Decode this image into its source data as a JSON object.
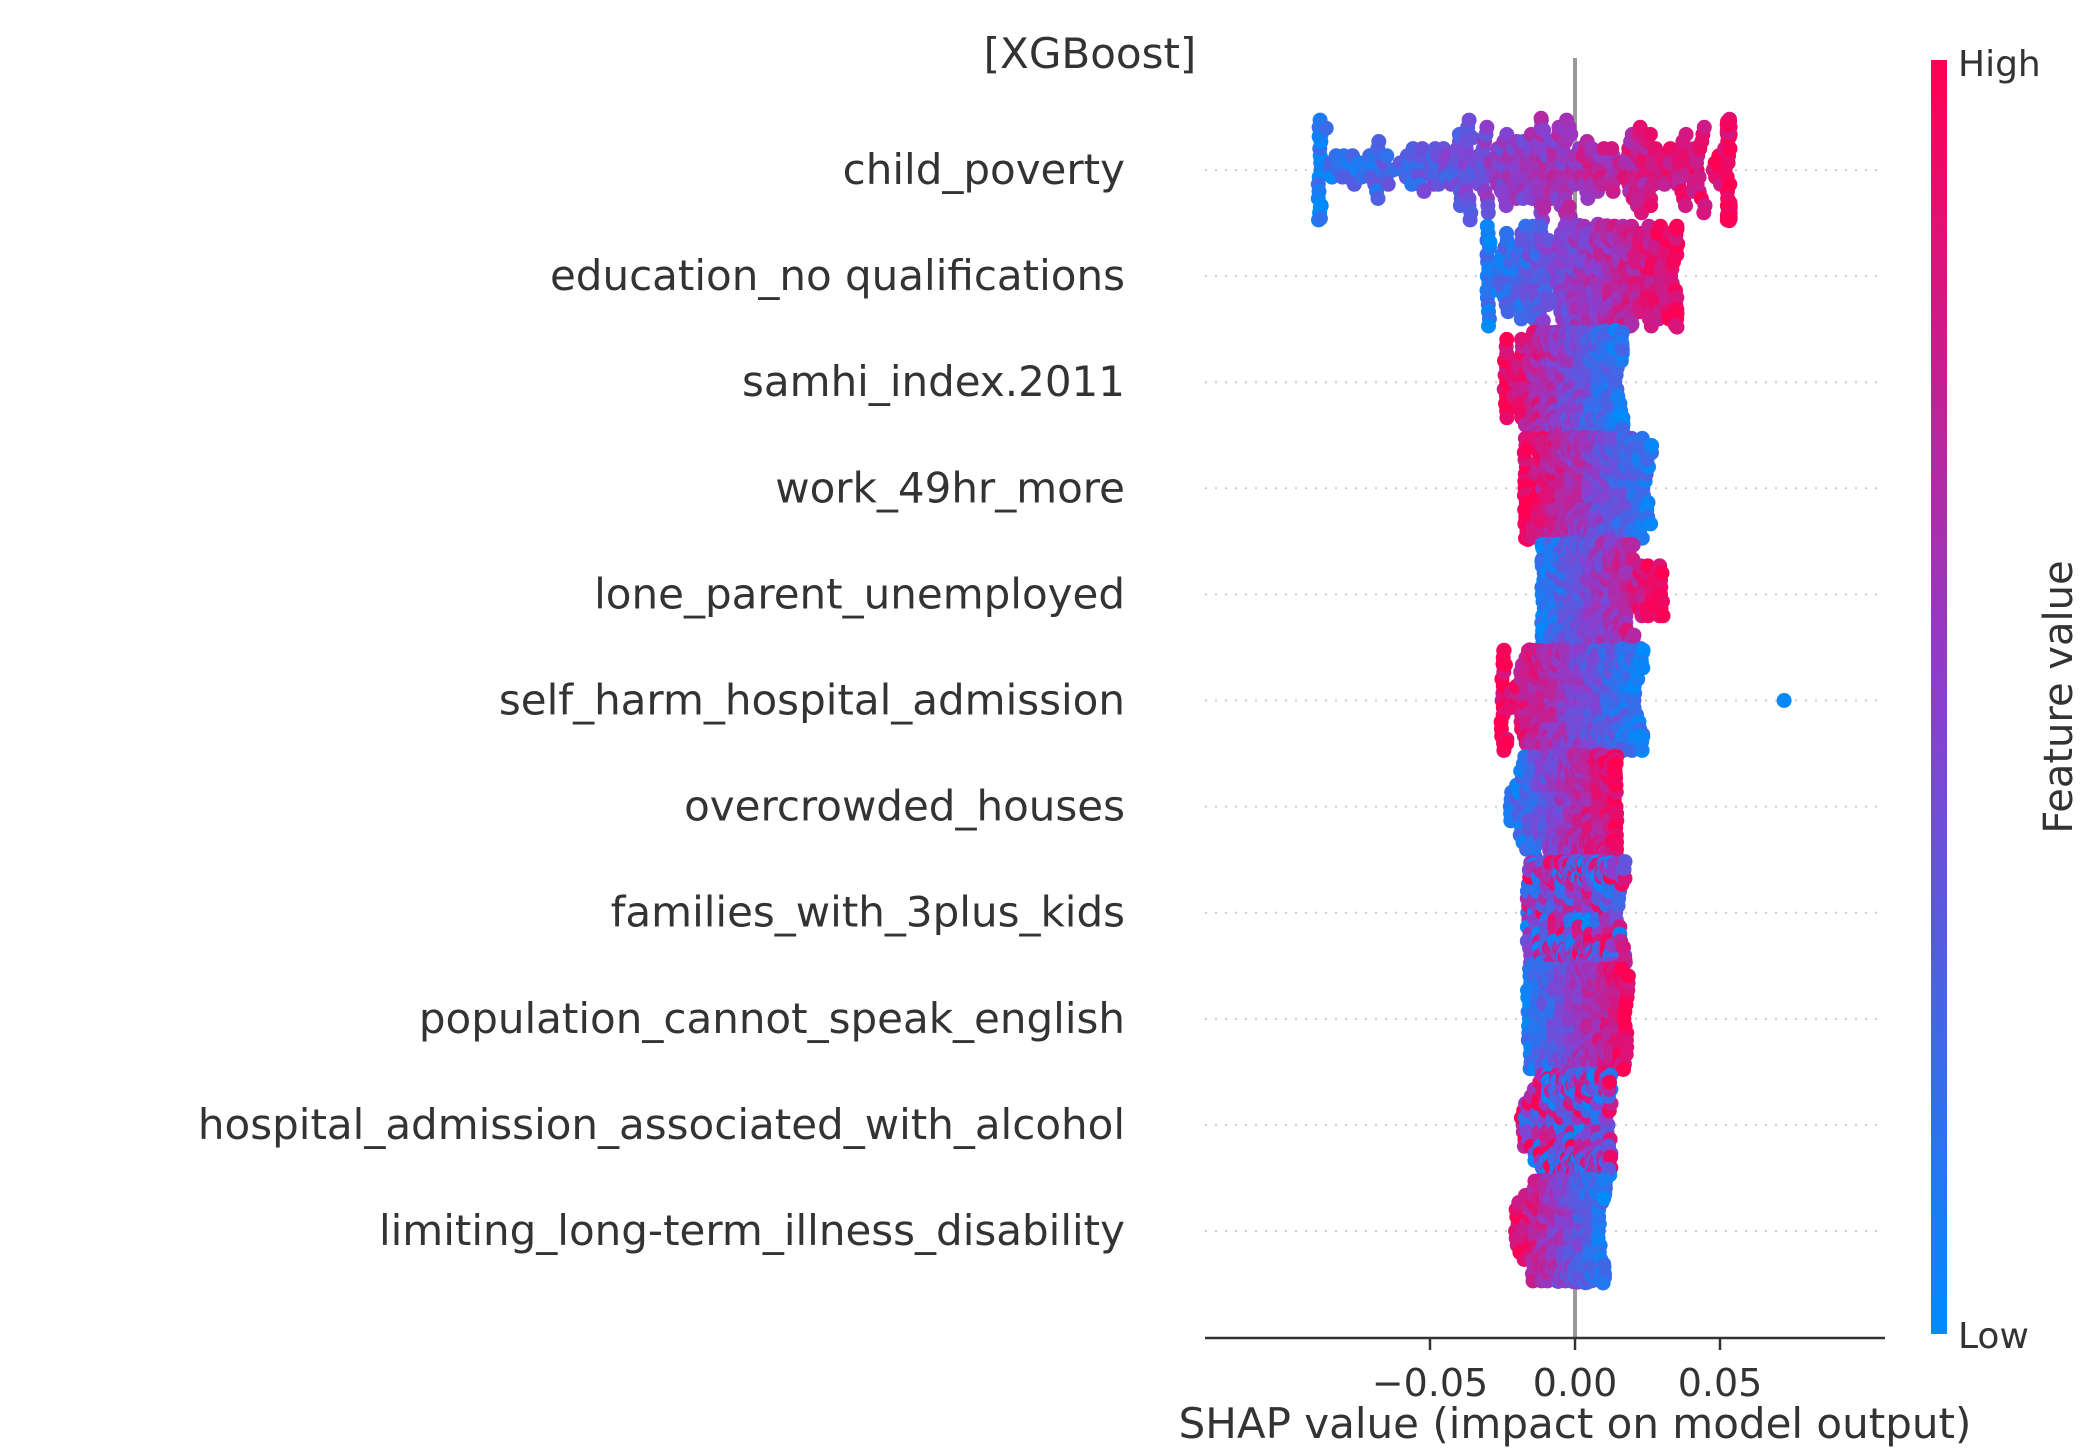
{
  "chart_data": {
    "type": "scatter",
    "subtype": "shap-beeswarm",
    "title": "[XGBoost]",
    "xlabel": "SHAP value (impact on model output)",
    "xlim": [
      -0.095,
      0.08
    ],
    "xticks": [
      -0.05,
      0.0,
      0.05
    ],
    "xtick_labels": [
      "−0.05",
      "0.00",
      "0.05"
    ],
    "features": [
      {
        "name": "child_poverty",
        "min": -0.088,
        "max": 0.053,
        "q1": -0.03,
        "q3": 0.032,
        "corr": 1,
        "n": 420,
        "outliers": []
      },
      {
        "name": "education_no qualifications",
        "min": -0.03,
        "max": 0.035,
        "q1": -0.013,
        "q3": 0.018,
        "corr": 1,
        "n": 360,
        "outliers": []
      },
      {
        "name": "samhi_index.2011",
        "min": -0.024,
        "max": 0.016,
        "q1": -0.008,
        "q3": 0.007,
        "corr": -1,
        "n": 360,
        "outliers": []
      },
      {
        "name": "work_49hr_more",
        "min": -0.017,
        "max": 0.026,
        "q1": -0.006,
        "q3": 0.009,
        "corr": -1,
        "n": 360,
        "outliers": []
      },
      {
        "name": "lone_parent_unemployed",
        "min": -0.011,
        "max": 0.03,
        "q1": -0.004,
        "q3": 0.011,
        "corr": 1,
        "n": 360,
        "outliers": []
      },
      {
        "name": "self_harm_hospital_admission",
        "min": -0.025,
        "max": 0.023,
        "q1": -0.009,
        "q3": 0.01,
        "corr": -1,
        "n": 360,
        "outliers": [
          0.072
        ]
      },
      {
        "name": "overcrowded_houses",
        "min": -0.022,
        "max": 0.014,
        "q1": -0.006,
        "q3": 0.006,
        "corr": 1,
        "n": 360,
        "outliers": []
      },
      {
        "name": "families_with_3plus_kids",
        "min": -0.016,
        "max": 0.017,
        "q1": -0.005,
        "q3": 0.006,
        "corr": 0,
        "n": 360,
        "outliers": []
      },
      {
        "name": "population_cannot_speak_english",
        "min": -0.016,
        "max": 0.018,
        "q1": -0.005,
        "q3": 0.007,
        "corr": 1,
        "n": 360,
        "outliers": []
      },
      {
        "name": "hospital_admission_associated_with_alcohol",
        "min": -0.018,
        "max": 0.012,
        "q1": -0.005,
        "q3": 0.005,
        "corr": 0,
        "n": 360,
        "outliers": []
      },
      {
        "name": "limiting_long-term_illness_disability",
        "min": -0.02,
        "max": 0.01,
        "q1": -0.006,
        "q3": 0.004,
        "corr": -1,
        "n": 360,
        "outliers": []
      }
    ],
    "colorbar": {
      "label": "Feature value",
      "high_label": "High",
      "low_label": "Low",
      "low_color": "#008bfb",
      "high_color": "#ff0052"
    },
    "grid": false,
    "legend": "colorbar-right"
  }
}
